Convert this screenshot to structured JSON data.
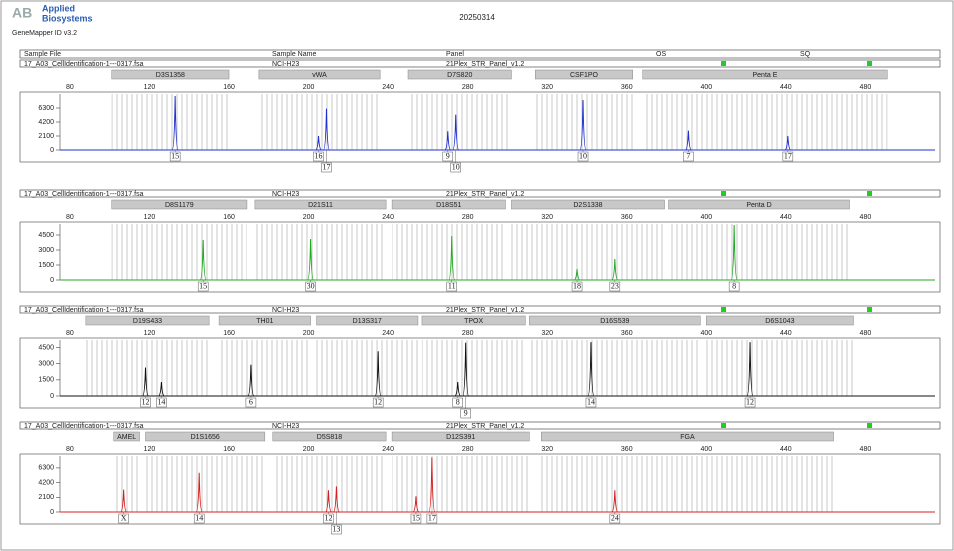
{
  "header": {
    "logo_mark": "AB",
    "logo_line1": "Applied",
    "logo_line2": "Biosystems",
    "software": "GeneMapper ID v3.2",
    "date": "20250314",
    "columns": [
      "Sample File",
      "Sample Name",
      "Panel",
      "OS",
      "SQ"
    ]
  },
  "chart_data": [
    {
      "type": "electropherogram",
      "sample_file": "17_A03_CellIdentification-1---0317.fsa",
      "sample_name": "NCI-H23",
      "panel": "21Plex_STR_Panel_v1.2",
      "color": "#1f2fd0",
      "xlim": [
        75,
        515
      ],
      "xticks": [
        80,
        120,
        160,
        200,
        240,
        280,
        320,
        360,
        400,
        440,
        480
      ],
      "ylim": [
        0,
        8400
      ],
      "yticks": [
        0,
        2100,
        4200,
        6300
      ],
      "markers": [
        {
          "name": "D3S1358",
          "range": [
            101,
            160
          ]
        },
        {
          "name": "vWA",
          "range": [
            175,
            236
          ]
        },
        {
          "name": "D7S820",
          "range": [
            250,
            302
          ]
        },
        {
          "name": "CSF1PO",
          "range": [
            314,
            363
          ]
        },
        {
          "name": "Penta E",
          "range": [
            368,
            491
          ]
        }
      ],
      "peaks": [
        {
          "allele": "15",
          "size": 132.9,
          "height": 8100
        },
        {
          "allele": "16",
          "size": 205,
          "height": 2100
        },
        {
          "allele": "17",
          "size": 209,
          "height": 6200
        },
        {
          "allele": "9",
          "size": 270,
          "height": 2800
        },
        {
          "allele": "10",
          "size": 274,
          "height": 5300
        },
        {
          "allele": "10",
          "size": 338,
          "height": 7500
        },
        {
          "allele": "7",
          "size": 391,
          "height": 2900
        },
        {
          "allele": "17",
          "size": 441,
          "height": 2100
        }
      ]
    },
    {
      "type": "electropherogram",
      "sample_file": "17_A03_CellIdentification-1---0317.fsa",
      "sample_name": "NCI-H23",
      "panel": "21Plex_STR_Panel_v1.2",
      "color": "#1faa1f",
      "xlim": [
        75,
        515
      ],
      "xticks": [
        80,
        120,
        160,
        200,
        240,
        280,
        320,
        360,
        400,
        440,
        480
      ],
      "ylim": [
        0,
        5600
      ],
      "yticks": [
        0,
        1500,
        3000,
        4500
      ],
      "markers": [
        {
          "name": "D8S1179",
          "range": [
            101,
            169
          ]
        },
        {
          "name": "D21S11",
          "range": [
            173,
            239
          ]
        },
        {
          "name": "D18S51",
          "range": [
            242,
            299
          ]
        },
        {
          "name": "D2S1338",
          "range": [
            302,
            379
          ]
        },
        {
          "name": "Penta D",
          "range": [
            381,
            472
          ]
        }
      ],
      "peaks": [
        {
          "allele": "15",
          "size": 147,
          "height": 4000
        },
        {
          "allele": "30",
          "size": 201,
          "height": 4100
        },
        {
          "allele": "11",
          "size": 272,
          "height": 4400
        },
        {
          "allele": "18",
          "size": 335,
          "height": 1100
        },
        {
          "allele": "23",
          "size": 354,
          "height": 2100
        },
        {
          "allele": "8",
          "size": 414,
          "height": 5500
        }
      ]
    },
    {
      "type": "electropherogram",
      "sample_file": "17_A03_CellIdentification-1---0317.fsa",
      "sample_name": "NCI-H23",
      "panel": "21Plex_STR_Panel_v1.2",
      "color": "#111111",
      "xlim": [
        75,
        515
      ],
      "xticks": [
        80,
        120,
        160,
        200,
        240,
        280,
        320,
        360,
        400,
        440,
        480
      ],
      "ylim": [
        0,
        5200
      ],
      "yticks": [
        0,
        1500,
        3000,
        4500
      ],
      "markers": [
        {
          "name": "D19S433",
          "range": [
            88,
            150
          ]
        },
        {
          "name": "TH01",
          "range": [
            155,
            201
          ]
        },
        {
          "name": "D13S317",
          "range": [
            204,
            255
          ]
        },
        {
          "name": "TPOX",
          "range": [
            257,
            309
          ]
        },
        {
          "name": "D16S539",
          "range": [
            311,
            397
          ]
        },
        {
          "name": "D6S1043",
          "range": [
            400,
            474
          ]
        }
      ],
      "peaks": [
        {
          "allele": "12",
          "size": 118,
          "height": 2650
        },
        {
          "allele": "14",
          "size": 126,
          "height": 1300
        },
        {
          "allele": "6",
          "size": 171,
          "height": 2900
        },
        {
          "allele": "12",
          "size": 235,
          "height": 4150
        },
        {
          "allele": "8",
          "size": 275,
          "height": 1300
        },
        {
          "allele": "9",
          "size": 279,
          "height": 4950
        },
        {
          "allele": "14",
          "size": 342,
          "height": 5000
        },
        {
          "allele": "12",
          "size": 422,
          "height": 5000
        }
      ]
    },
    {
      "type": "electropherogram",
      "sample_file": "17_A03_CellIdentification-1---0317.fsa",
      "sample_name": "NCI-H23",
      "panel": "21Plex_STR_Panel_v1.2",
      "color": "#d42020",
      "xlim": [
        75,
        515
      ],
      "xticks": [
        80,
        120,
        160,
        200,
        240,
        280,
        320,
        360,
        400,
        440,
        480
      ],
      "ylim": [
        0,
        8000
      ],
      "yticks": [
        0,
        2100,
        4200,
        6300
      ],
      "markers": [
        {
          "name": "AMEL",
          "range": [
            102,
            115
          ]
        },
        {
          "name": "D1S1656",
          "range": [
            118,
            178
          ]
        },
        {
          "name": "D5S818",
          "range": [
            182,
            239
          ]
        },
        {
          "name": "D12S391",
          "range": [
            242,
            311
          ]
        },
        {
          "name": "FGA",
          "range": [
            317,
            464
          ]
        }
      ],
      "peaks": [
        {
          "allele": "X",
          "size": 107,
          "height": 3200
        },
        {
          "allele": "14",
          "size": 145,
          "height": 5600
        },
        {
          "allele": "12",
          "size": 210,
          "height": 3100
        },
        {
          "allele": "13",
          "size": 214,
          "height": 3650
        },
        {
          "allele": "15",
          "size": 254,
          "height": 2250
        },
        {
          "allele": "17",
          "size": 262,
          "height": 7800
        },
        {
          "allele": "24",
          "size": 354,
          "height": 3100
        }
      ]
    }
  ]
}
